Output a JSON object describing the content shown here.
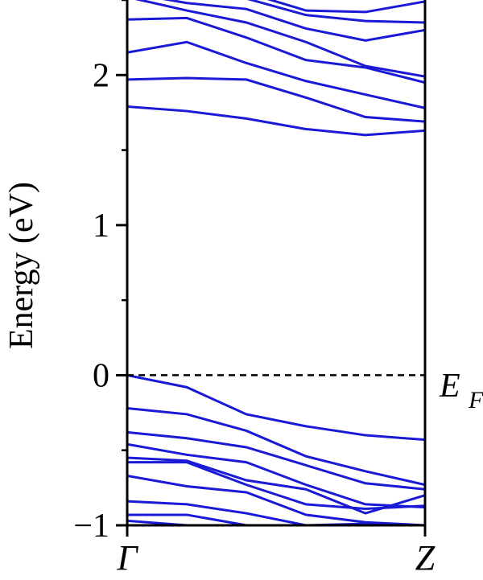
{
  "chart_data": {
    "type": "line",
    "ylabel": "Energy (eV)",
    "xlabel": "",
    "ylim": [
      -1,
      2.5
    ],
    "y_ticks": [
      {
        "value": -1,
        "label": "−1"
      },
      {
        "value": 0,
        "label": "0"
      },
      {
        "value": 1,
        "label": "1"
      },
      {
        "value": 2,
        "label": "2"
      }
    ],
    "x_ticks": [
      {
        "value": 0,
        "label": "Γ"
      },
      {
        "value": 1,
        "label": "Z"
      }
    ],
    "fermi_level": {
      "value": 0,
      "label": "E",
      "subscript": "F",
      "style": "dashed"
    },
    "band_color": "#1a1ad6",
    "x": [
      0,
      0.2,
      0.4,
      0.6,
      0.8,
      1.0
    ],
    "series": [
      {
        "values": [
          1.79,
          1.76,
          1.71,
          1.64,
          1.6,
          1.63
        ]
      },
      {
        "values": [
          1.97,
          1.98,
          1.97,
          1.85,
          1.72,
          1.69
        ]
      },
      {
        "values": [
          2.15,
          2.22,
          2.08,
          1.96,
          1.87,
          1.78
        ]
      },
      {
        "values": [
          2.37,
          2.38,
          2.25,
          2.1,
          2.05,
          1.95
        ]
      },
      {
        "values": [
          2.52,
          2.43,
          2.35,
          2.22,
          2.06,
          1.99
        ]
      },
      {
        "values": [
          2.55,
          2.48,
          2.44,
          2.31,
          2.23,
          2.3
        ]
      },
      {
        "values": [
          2.6,
          2.52,
          2.51,
          2.4,
          2.36,
          2.35
        ]
      },
      {
        "values": [
          2.62,
          2.55,
          2.55,
          2.43,
          2.42,
          2.49
        ]
      },
      {
        "values": [
          0.0,
          -0.08,
          -0.26,
          -0.34,
          -0.4,
          -0.43
        ]
      },
      {
        "values": [
          -0.22,
          -0.26,
          -0.37,
          -0.54,
          -0.64,
          -0.73
        ]
      },
      {
        "values": [
          -0.38,
          -0.42,
          -0.48,
          -0.6,
          -0.72,
          -0.76
        ]
      },
      {
        "values": [
          -0.46,
          -0.53,
          -0.58,
          -0.73,
          -0.86,
          -0.88
        ]
      },
      {
        "values": [
          -0.55,
          -0.57,
          -0.7,
          -0.76,
          -0.92,
          -0.8
        ]
      },
      {
        "values": [
          -0.58,
          -0.58,
          -0.73,
          -0.86,
          -0.89,
          -0.87
        ]
      },
      {
        "values": [
          -0.67,
          -0.74,
          -0.78,
          -0.93,
          -0.98,
          -1.0
        ]
      },
      {
        "values": [
          -0.84,
          -0.86,
          -0.92,
          -1.0,
          -0.99,
          -1.02
        ]
      },
      {
        "values": [
          -0.93,
          -0.93,
          -1.0,
          -1.02,
          -1.04,
          -1.05
        ]
      },
      {
        "values": [
          -0.97,
          -1.0,
          -1.03,
          -1.05,
          -1.06,
          -1.06
        ]
      }
    ]
  }
}
